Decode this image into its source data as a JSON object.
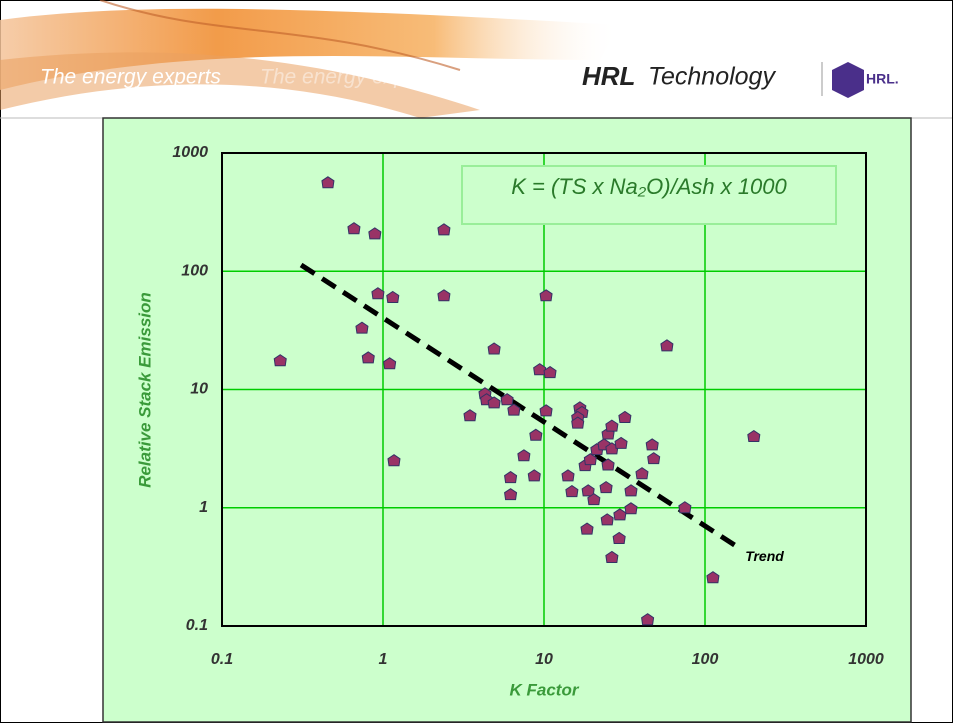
{
  "header": {
    "tagline": "The energy experts",
    "tagline_echo": "The energy experts",
    "brand": "HRL",
    "brand_suffix": "Technology",
    "logo_text": "HRL."
  },
  "chart_data": {
    "type": "scatter",
    "xlabel": "K Factor",
    "ylabel": "Relative Stack Emission",
    "annotation": "K = (TS x Na₂O)/Ash x 1000",
    "xscale": "log",
    "yscale": "log",
    "grid": true,
    "xlim": [
      0.1,
      1000
    ],
    "ylim": [
      0.1,
      1000
    ],
    "xticks": [
      0.1,
      1,
      10,
      100,
      1000
    ],
    "yticks": [
      0.1,
      1,
      10,
      100,
      1000
    ],
    "color": "#993366",
    "x": [
      0.455,
      0.66,
      0.89,
      2.39,
      0.23,
      0.93,
      1.15,
      2.39,
      0.74,
      0.81,
      1.1,
      1.17,
      10.3,
      58,
      4.9,
      9.4,
      10.9,
      201,
      3.47,
      4.3,
      4.4,
      4.9,
      5.9,
      6.5,
      10.3,
      16.7,
      17.2,
      16.2,
      16.2,
      31.8,
      8.9,
      7.5,
      6.2,
      6.2,
      8.7,
      14.1,
      14.9,
      18,
      18.8,
      20.4,
      19.4,
      21.3,
      23.6,
      25,
      26.4,
      25,
      26.4,
      30.1,
      24.3,
      24.7,
      18.5,
      29.6,
      34.7,
      34.7,
      40.6,
      47,
      48,
      26.4,
      29.3,
      75,
      112,
      44
    ],
    "y": [
      560,
      229,
      207,
      224,
      17.5,
      64.5,
      60,
      62,
      33,
      18.5,
      16.5,
      2.5,
      62,
      23.4,
      22,
      14.7,
      13.9,
      4,
      6,
      9.2,
      8.2,
      7.7,
      8.2,
      6.7,
      6.6,
      7,
      6.4,
      5.8,
      5.2,
      5.8,
      4.1,
      2.75,
      1.8,
      1.29,
      1.86,
      1.86,
      1.37,
      2.27,
      1.39,
      1.17,
      2.55,
      3.1,
      3.4,
      4.2,
      4.9,
      2.3,
      3.15,
      3.5,
      1.48,
      0.79,
      0.66,
      0.87,
      0.98,
      1.39,
      1.94,
      3.4,
      2.6,
      0.38,
      0.55,
      1,
      0.256,
      0.113
    ],
    "trend": {
      "label": "Trend",
      "color": "#000000",
      "x": [
        0.31,
        154
      ],
      "y": [
        113,
        0.48
      ]
    }
  }
}
